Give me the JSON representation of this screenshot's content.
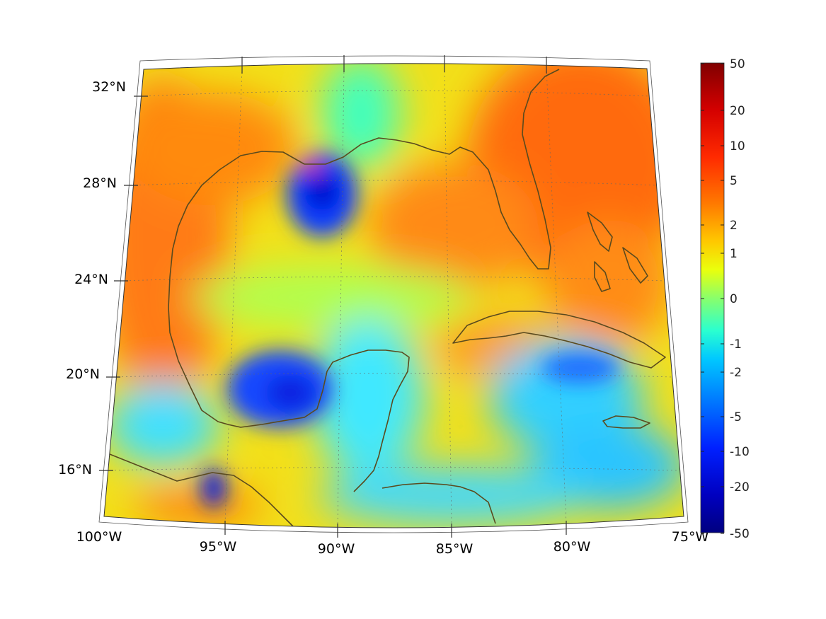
{
  "map": {
    "lat_labels": [
      {
        "lat": 32,
        "text": "32°N"
      },
      {
        "lat": 28,
        "text": "28°N"
      },
      {
        "lat": 24,
        "text": "24°N"
      },
      {
        "lat": 20,
        "text": "20°N"
      },
      {
        "lat": 16,
        "text": "16°N"
      }
    ],
    "lon_labels": [
      {
        "lon": -100,
        "text": "100°W"
      },
      {
        "lon": -95,
        "text": "95°W"
      },
      {
        "lon": -90,
        "text": "90°W"
      },
      {
        "lon": -85,
        "text": "85°W"
      },
      {
        "lon": -80,
        "text": "80°W"
      },
      {
        "lon": -75,
        "text": "75°W"
      }
    ],
    "extent": {
      "lon_min": -100,
      "lon_max": -75,
      "lat_min": 14,
      "lat_max": 33
    },
    "coastline_color": "#5a4a1e",
    "grid": true
  },
  "colorbar": {
    "ticks": [
      "50",
      "20",
      "10",
      "5",
      "2",
      "1",
      "0",
      "-1",
      "-2",
      "-5",
      "-10",
      "-20",
      "-50"
    ],
    "colormap": "jet",
    "top_color": "#800000",
    "bottom_color": "#000080"
  },
  "field_regions": [
    {
      "name": "atlantic-high",
      "level": "6"
    },
    {
      "name": "northern-gulf-low",
      "level": "-10"
    },
    {
      "name": "bay-of-campeche-low",
      "level": "-10"
    },
    {
      "name": "tehuantepec-low",
      "level": "-20"
    }
  ]
}
